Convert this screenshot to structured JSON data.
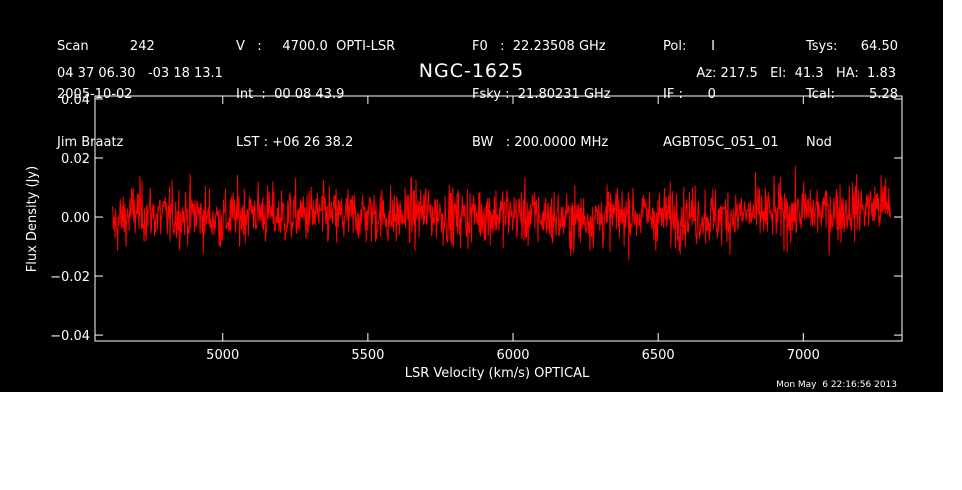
{
  "header": {
    "col1": [
      "Scan          242",
      "2005-10-02",
      "Jim Braatz"
    ],
    "col2": [
      "V   :     4700.0  OPTI-LSR",
      "Int  :  00 08 43.9",
      "LST : +06 26 38.2"
    ],
    "col3": [
      "F0   :  22.23508 GHz",
      "Fsky :  21.80231 GHz",
      "BW   : 200.0000 MHz"
    ],
    "col4": [
      "Pol:      I",
      "IF :      0",
      "AGBT05C_051_01"
    ],
    "col5_labels": [
      "Tsys:",
      "Tcal:",
      "Nod"
    ],
    "col5_values": [
      "64.50",
      "5.28",
      ""
    ],
    "coords": "04 37 06.30   -03 18 13.1",
    "object": "NGC-1625",
    "azelha": "Az: 217.5   El:  41.3   HA:  1.83"
  },
  "timestamp": "Mon May  6 22:16:56 2013",
  "colors": {
    "background": "#000000",
    "trace": "#ff0000",
    "axes": "#ffffff"
  },
  "chart_data": {
    "type": "line",
    "title": "NGC-1625",
    "xlabel": "LSR Velocity (km/s) OPTICAL",
    "ylabel": "Flux Density (Jy)",
    "xlim": [
      4560,
      7340
    ],
    "ylim": [
      -0.042,
      0.041
    ],
    "xticks": [
      5000,
      5500,
      6000,
      6500,
      7000
    ],
    "yticks": [
      -0.04,
      -0.02,
      0.0,
      0.02,
      0.04
    ],
    "xtick_labels": [
      "5000",
      "5500",
      "6000",
      "6500",
      "7000"
    ],
    "ytick_labels": [
      "−0.04",
      "−0.02",
      "0.00",
      "0.02",
      "0.04"
    ],
    "grid": false,
    "series": [
      {
        "x_start": 4620,
        "x_end": 7300,
        "noise_rms_jy": 0.008,
        "mean_jy": 0.0,
        "x": [
          4620,
          4700,
          4800,
          4900,
          5000,
          5100,
          5200,
          5300,
          5400,
          5500,
          5600,
          5700,
          5800,
          5900,
          6000,
          6100,
          6200,
          6300,
          6400,
          6500,
          6600,
          6700,
          6800,
          6900,
          7000,
          7100,
          7200,
          7300
        ],
        "y": [
          -0.003,
          0.002,
          0.0,
          0.001,
          -0.001,
          0.002,
          0.0,
          0.001,
          0.0,
          0.001,
          0.0,
          0.002,
          0.0,
          0.001,
          0.001,
          0.0,
          -0.001,
          0.0,
          0.001,
          0.0,
          0.001,
          0.0,
          0.001,
          0.001,
          0.002,
          0.002,
          0.003,
          0.004
        ]
      }
    ]
  }
}
